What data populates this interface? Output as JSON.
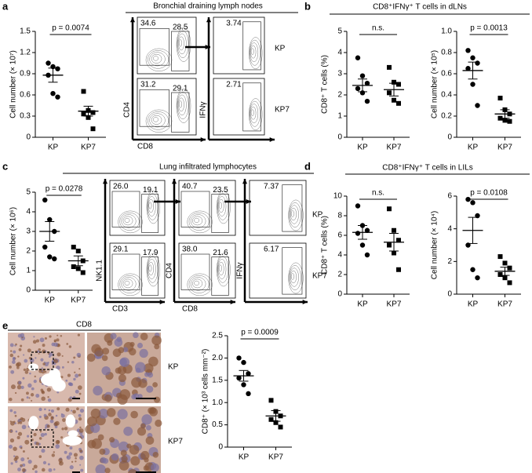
{
  "panel_letters": [
    "a",
    "b",
    "c",
    "d",
    "e"
  ],
  "headers": {
    "a": "Bronchial draining lymph nodes",
    "b": "CD8⁺IFNγ⁺ T cells in dLNs",
    "c": "Lung infiltrated lymphocytes",
    "d": "CD8⁺IFNγ⁺ T cells in LILs",
    "e": "CD8"
  },
  "flow_a": {
    "gates": [
      "34.6",
      "28.5",
      "3.74",
      "31.2",
      "29.1",
      "2.71"
    ],
    "axes": [
      "CD4",
      "CD8",
      "IFNγ"
    ],
    "rows": [
      "KP",
      "KP7"
    ]
  },
  "flow_c": {
    "gates": [
      "26.0",
      "19.1",
      "40.7",
      "23.5",
      "7.37",
      "29.1",
      "17.9",
      "38.0",
      "21.6",
      "6.17"
    ],
    "axes": [
      "NK1.1",
      "CD3",
      "CD4",
      "CD8",
      "IFNγ"
    ],
    "rows": [
      "KP",
      "KP7"
    ]
  },
  "images_e": {
    "rows": [
      "KP",
      "KP7"
    ]
  },
  "chart_data": [
    {
      "type": "dot",
      "ylabel": "Cell number (× 10⁷)",
      "categories": [
        "KP",
        "KP7"
      ],
      "values": [
        [
          1.05,
          1.0,
          0.97,
          0.88,
          0.62,
          0.57
        ],
        [
          0.65,
          0.38,
          0.35,
          0.33,
          0.28,
          0.12
        ]
      ],
      "means": [
        0.88,
        0.37
      ],
      "errors": [
        0.1,
        0.07
      ],
      "annotation": "p = 0.0074",
      "ylim": [
        0,
        1.5
      ],
      "yticks": [
        0,
        0.3,
        0.6,
        0.9,
        1.2,
        1.5
      ],
      "markers": [
        "circle",
        "square"
      ],
      "color": "#000000"
    },
    {
      "type": "dot",
      "ylabel": "CD8⁺ T cells (%)",
      "categories": [
        "KP",
        "KP7"
      ],
      "values": [
        [
          3.75,
          2.9,
          2.55,
          2.3,
          2.1,
          1.7
        ],
        [
          3.3,
          2.6,
          2.5,
          2.1,
          1.75,
          1.6
        ]
      ],
      "means": [
        2.45,
        2.25
      ],
      "errors": [
        0.3,
        0.3
      ],
      "annotation": "n.s.",
      "ylim": [
        0,
        5
      ],
      "yticks": [
        0,
        1,
        2,
        3,
        4,
        5
      ],
      "markers": [
        "circle",
        "square"
      ],
      "color": "#000000"
    },
    {
      "type": "dot",
      "ylabel": "Cell number (× 10⁵)",
      "categories": [
        "KP",
        "KP7"
      ],
      "values": [
        [
          0.82,
          0.75,
          0.7,
          0.65,
          0.5,
          0.3
        ],
        [
          0.37,
          0.26,
          0.22,
          0.18,
          0.16,
          0.15
        ]
      ],
      "means": [
        0.63,
        0.22
      ],
      "errors": [
        0.08,
        0.04
      ],
      "annotation": "p = 0.0013",
      "ylim": [
        0,
        1
      ],
      "yticks": [
        0,
        0.2,
        0.4,
        0.6,
        0.8,
        {
          "value": 1,
          "label": "1.0"
        }
      ],
      "markers": [
        "circle",
        "square"
      ],
      "color": "#000000"
    },
    {
      "type": "dot",
      "ylabel": "Cell number (× 10⁶)",
      "categories": [
        "KP",
        "KP7"
      ],
      "values": [
        [
          4.6,
          3.6,
          3.0,
          2.2,
          1.7,
          1.6
        ],
        [
          2.2,
          2.0,
          1.5,
          1.2,
          1.1,
          0.9
        ]
      ],
      "means": [
        3.0,
        1.5
      ],
      "errors": [
        0.5,
        0.25
      ],
      "annotation": "p = 0.0278",
      "ylim": [
        0,
        5
      ],
      "yticks": [
        0,
        1,
        2,
        3,
        4,
        5
      ],
      "markers": [
        "circle",
        "square"
      ],
      "color": "#000000"
    },
    {
      "type": "dot",
      "ylabel": "CD8⁺ T cells (%)",
      "categories": [
        "KP",
        "KP7"
      ],
      "values": [
        [
          9.0,
          7.0,
          6.5,
          6.2,
          5.0,
          4.0
        ],
        [
          8.7,
          6.5,
          5.5,
          5.0,
          4.2,
          2.5
        ]
      ],
      "means": [
        6.3,
        5.3
      ],
      "errors": [
        0.7,
        0.9
      ],
      "annotation": "n.s.",
      "ylim": [
        0,
        10
      ],
      "yticks": [
        0,
        2,
        4,
        6,
        8,
        10
      ],
      "markers": [
        "circle",
        "square"
      ],
      "color": "#000000"
    },
    {
      "type": "dot",
      "ylabel": "Cell number (× 10⁴)",
      "categories": [
        "KP",
        "KP7"
      ],
      "values": [
        [
          5.8,
          5.6,
          4.8,
          3.0,
          1.5,
          1.0
        ],
        [
          2.3,
          1.9,
          1.6,
          1.2,
          1.0,
          0.7
        ]
      ],
      "means": [
        3.9,
        1.4
      ],
      "errors": [
        0.8,
        0.25
      ],
      "annotation": "p = 0.0108",
      "ylim": [
        0,
        6
      ],
      "yticks": [
        0,
        2,
        4,
        6
      ],
      "markers": [
        "circle",
        "square"
      ],
      "color": "#000000"
    },
    {
      "type": "dot",
      "ylabel": "CD8⁺ (× 10³ cells mm⁻²)",
      "categories": [
        "KP",
        "KP7"
      ],
      "values": [
        [
          2.0,
          1.9,
          1.65,
          1.55,
          1.4,
          1.2
        ],
        [
          1.05,
          0.8,
          0.7,
          0.62,
          0.55,
          0.45
        ]
      ],
      "means": [
        1.6,
        0.7
      ],
      "errors": [
        0.12,
        0.12
      ],
      "annotation": "p = 0.0009",
      "ylim": [
        0,
        2.5
      ],
      "yticks": [
        0,
        0.5,
        {
          "value": 1,
          "label": "1.0"
        },
        1.5,
        {
          "value": 2,
          "label": "2.0"
        },
        2.5
      ],
      "markers": [
        "circle",
        "square"
      ],
      "color": "#000000"
    }
  ]
}
